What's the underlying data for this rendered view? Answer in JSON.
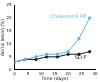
{
  "chart_data": {
    "type": "line",
    "x_label": "Time (days)",
    "y_label": "Aortic lesion (%)",
    "x": [
      0,
      4,
      8,
      12,
      16,
      20,
      24,
      28
    ],
    "series": [
      {
        "name": "Cholesterol HF",
        "color": "#5bb8e8",
        "marker": "circle",
        "values": [
          3,
          4,
          5,
          6,
          6,
          7,
          12,
          20
        ]
      },
      {
        "name": "SD-F",
        "color": "#1a1a1a",
        "marker": "circle",
        "values": [
          3,
          4,
          4,
          5,
          5,
          6,
          6,
          7
        ]
      }
    ],
    "xlim": [
      0,
      30
    ],
    "xticks": [
      0,
      5,
      10,
      15,
      20,
      25,
      30
    ],
    "ylim": [
      0,
      25
    ],
    "yticks": [
      0,
      5,
      10,
      15,
      20,
      25
    ],
    "grid": false
  }
}
